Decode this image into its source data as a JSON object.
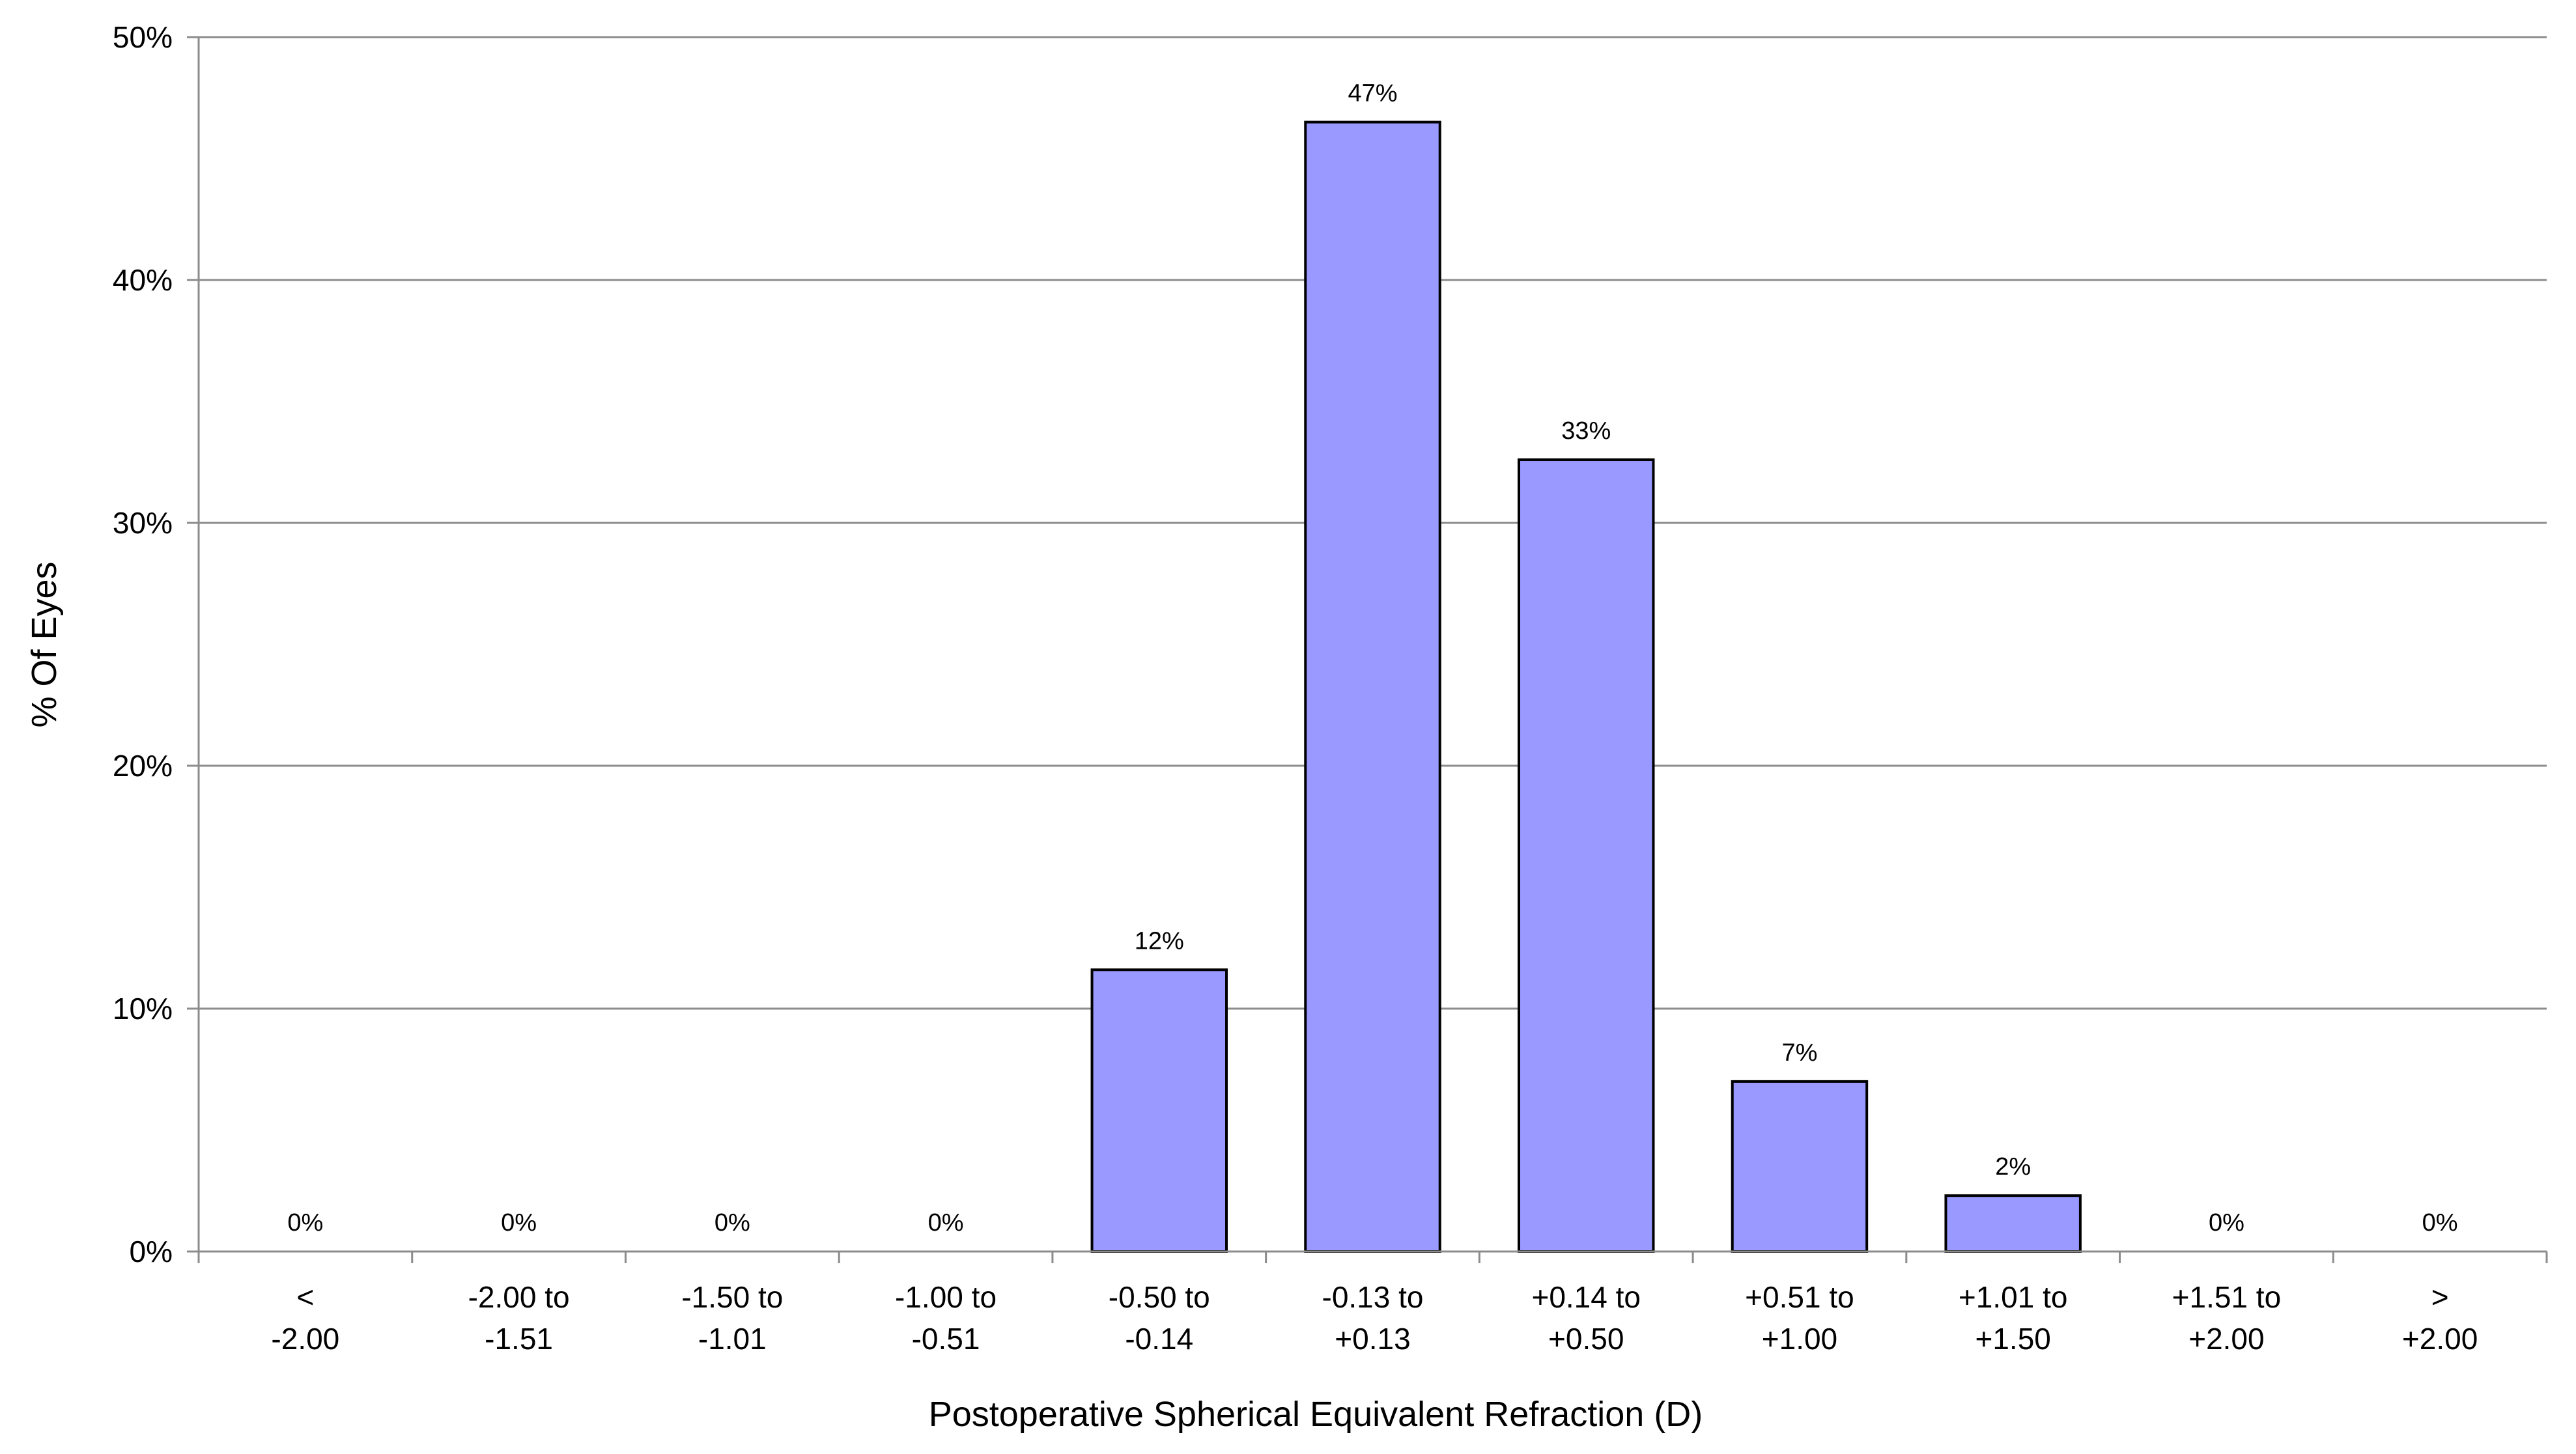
{
  "chart_data": {
    "type": "bar",
    "title": "",
    "xlabel": "Postoperative Spherical Equivalent Refraction (D)",
    "ylabel": "% Of Eyes",
    "ylim": [
      0,
      50
    ],
    "y_ticks": [
      "0%",
      "10%",
      "20%",
      "30%",
      "40%",
      "50%"
    ],
    "grid": true,
    "legend": "none",
    "bar_color": "#9999ff",
    "bar_border_color": "#000000",
    "categories": [
      [
        "<",
        "-2.00"
      ],
      [
        "-2.00 to",
        "-1.51"
      ],
      [
        "-1.50 to",
        "-1.01"
      ],
      [
        "-1.00 to",
        "-0.51"
      ],
      [
        "-0.50 to",
        "-0.14"
      ],
      [
        "-0.13 to",
        "+0.13"
      ],
      [
        "+0.14 to",
        "+0.50"
      ],
      [
        "+0.51 to",
        "+1.00"
      ],
      [
        "+1.01 to",
        "+1.50"
      ],
      [
        "+1.51 to",
        "+2.00"
      ],
      [
        ">",
        "+2.00"
      ]
    ],
    "values": [
      0,
      0,
      0,
      0,
      11.6,
      46.5,
      32.6,
      7.0,
      2.3,
      0,
      0
    ],
    "data_labels": [
      "0%",
      "0%",
      "0%",
      "0%",
      "12%",
      "47%",
      "33%",
      "7%",
      "2%",
      "0%",
      "0%"
    ]
  }
}
